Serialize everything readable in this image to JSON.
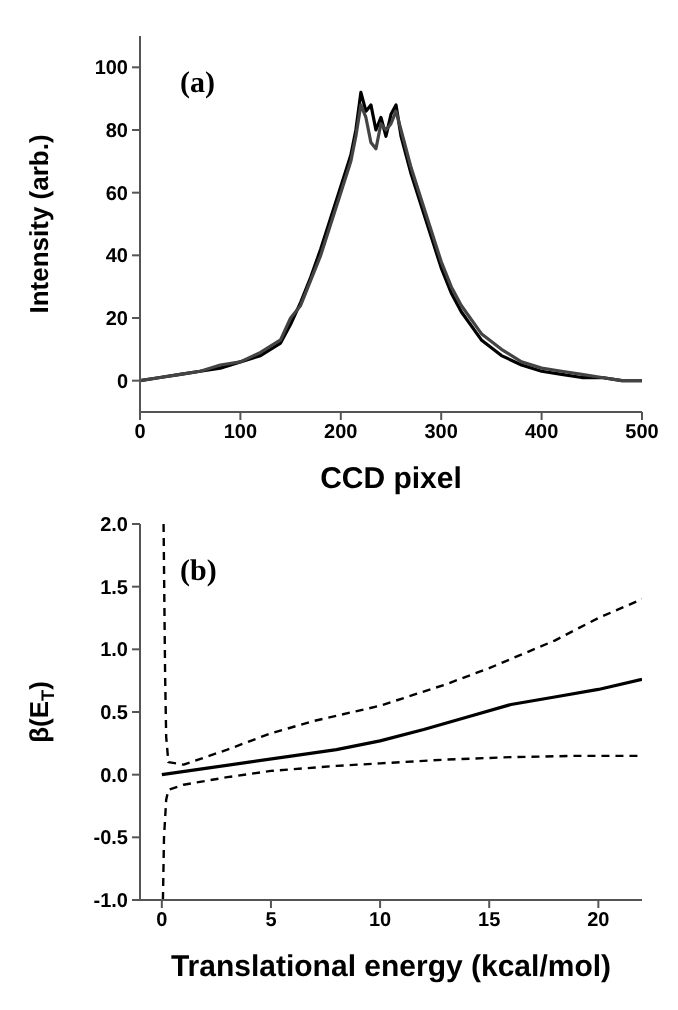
{
  "chart_data": [
    {
      "type": "line",
      "xlabel": "CCD pixel",
      "ylabel": "Intensity (arb.)",
      "annotations": [
        "(a)"
      ],
      "xlim": [
        0,
        500
      ],
      "ylim": [
        -10,
        110
      ],
      "xticks": [
        0,
        100,
        200,
        300,
        400,
        500
      ],
      "yticks": [
        0,
        20,
        40,
        60,
        80,
        100
      ],
      "marker": "none",
      "series": [
        {
          "color": "#000000",
          "x": [
            0,
            20,
            40,
            60,
            80,
            100,
            120,
            140,
            150,
            160,
            170,
            180,
            190,
            200,
            210,
            215,
            220,
            225,
            230,
            235,
            240,
            245,
            250,
            255,
            260,
            270,
            280,
            290,
            300,
            310,
            320,
            340,
            360,
            380,
            400,
            420,
            440,
            460,
            480,
            500
          ],
          "values": [
            0,
            1,
            2,
            3,
            4,
            6,
            8,
            12,
            18,
            25,
            33,
            42,
            52,
            62,
            72,
            80,
            92,
            86,
            88,
            80,
            84,
            78,
            85,
            88,
            78,
            66,
            56,
            46,
            36,
            28,
            22,
            13,
            8,
            5,
            3,
            2,
            1,
            1,
            0,
            0
          ]
        },
        {
          "color": "#444444",
          "x": [
            0,
            20,
            40,
            60,
            80,
            100,
            120,
            140,
            150,
            160,
            170,
            180,
            190,
            200,
            210,
            215,
            220,
            225,
            230,
            235,
            240,
            245,
            250,
            255,
            260,
            270,
            280,
            290,
            300,
            310,
            320,
            340,
            360,
            380,
            400,
            420,
            440,
            460,
            480,
            500
          ],
          "values": [
            0,
            1,
            2,
            3,
            5,
            6,
            9,
            13,
            20,
            24,
            32,
            40,
            50,
            60,
            70,
            78,
            88,
            84,
            76,
            74,
            82,
            80,
            82,
            86,
            80,
            68,
            58,
            48,
            38,
            30,
            24,
            15,
            10,
            6,
            4,
            3,
            2,
            1,
            0,
            0
          ]
        }
      ]
    },
    {
      "type": "line",
      "xlabel": "Translational energy (kcal/mol)",
      "ylabel": "β(E$_{T}$)",
      "annotations": [
        "(b)"
      ],
      "xlim": [
        -1,
        22
      ],
      "ylim": [
        -1,
        2
      ],
      "xticks": [
        0,
        5,
        10,
        15,
        20
      ],
      "yticks": [
        {
          "value": -1,
          "label": "-1.0"
        },
        {
          "value": -0.5,
          "label": "-0.5"
        },
        {
          "value": 0,
          "label": "0.0"
        },
        {
          "value": 0.5,
          "label": "0.5"
        },
        {
          "value": 1,
          "label": "1.0"
        },
        {
          "value": 1.5,
          "label": "1.5"
        },
        {
          "value": 2,
          "label": "2.0"
        }
      ],
      "marker": "none",
      "series": [
        {
          "color": "#000000",
          "line_style": "solid",
          "x": [
            0,
            2,
            4,
            6,
            8,
            10,
            12,
            14,
            16,
            18,
            20,
            22
          ],
          "values": [
            0,
            0.05,
            0.1,
            0.15,
            0.2,
            0.27,
            0.36,
            0.46,
            0.56,
            0.62,
            0.68,
            0.76
          ]
        },
        {
          "color": "#000000",
          "line_style": "dashed",
          "x": [
            0.08,
            0.15,
            0.2,
            0.3,
            1,
            3,
            5,
            7,
            10,
            13,
            15,
            18,
            20,
            22
          ],
          "values": [
            2,
            0.8,
            0.3,
            0.1,
            0.08,
            0.2,
            0.33,
            0.43,
            0.55,
            0.72,
            0.85,
            1.07,
            1.25,
            1.4
          ]
        },
        {
          "color": "#000000",
          "line_style": "dashed",
          "x": [
            0.05,
            0.1,
            0.2,
            0.3,
            1,
            3,
            5,
            8,
            10,
            13,
            16,
            19,
            22
          ],
          "values": [
            -1,
            -0.5,
            -0.2,
            -0.12,
            -0.08,
            -0.02,
            0.03,
            0.07,
            0.09,
            0.12,
            0.14,
            0.15,
            0.15
          ]
        }
      ]
    }
  ]
}
